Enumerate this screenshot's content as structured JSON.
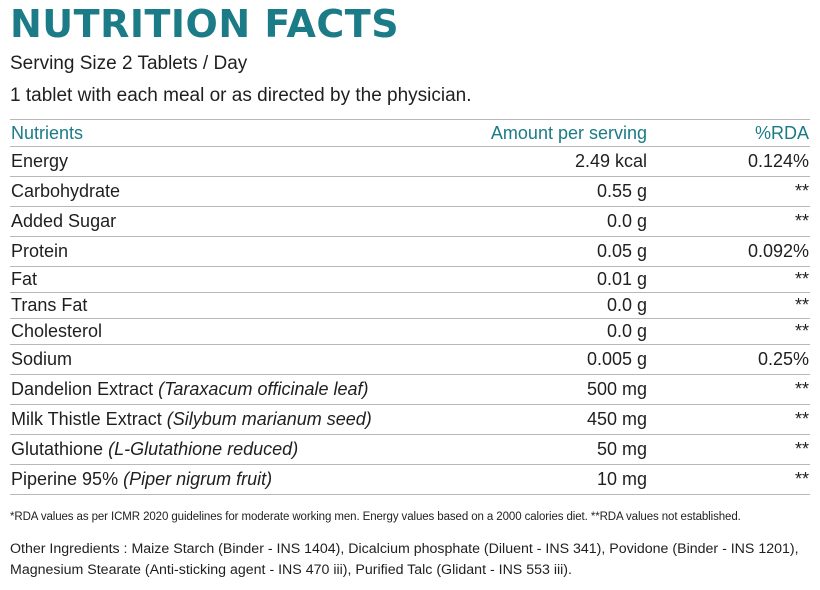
{
  "colors": {
    "accent": "#1b7b87",
    "text": "#1f1f1f",
    "rule": "#b8b8b8"
  },
  "title": "NUTRITION FACTS",
  "serving_size": "Serving Size 2 Tablets / Day",
  "directions": "1 tablet with each meal or as directed by the physician.",
  "table": {
    "headers": {
      "nutrient": "Nutrients",
      "amount": "Amount per serving",
      "rda": "%RDA"
    },
    "rows": [
      {
        "name": "Energy",
        "latin": "",
        "amount": "2.49 kcal",
        "rda": "0.124%"
      },
      {
        "name": "Carbohydrate",
        "latin": "",
        "amount": "0.55 g",
        "rda": "**"
      },
      {
        "name": "Added Sugar",
        "latin": "",
        "amount": "0.0 g",
        "rda": "**"
      },
      {
        "name": "Protein",
        "latin": "",
        "amount": "0.05 g",
        "rda": "0.092%"
      },
      {
        "name": "Fat",
        "latin": "",
        "amount": "0.01 g",
        "rda": "**"
      },
      {
        "name": "Trans Fat",
        "latin": "",
        "amount": "0.0 g",
        "rda": "**"
      },
      {
        "name": "Cholesterol",
        "latin": "",
        "amount": "0.0 g",
        "rda": "**"
      },
      {
        "name": "Sodium",
        "latin": "",
        "amount": "0.005 g",
        "rda": "0.25%"
      },
      {
        "name": "Dandelion Extract ",
        "latin": "(Taraxacum officinale leaf)",
        "amount": "500 mg",
        "rda": "**"
      },
      {
        "name": "Milk Thistle Extract ",
        "latin": "(Silybum marianum seed)",
        "amount": "450 mg",
        "rda": "**"
      },
      {
        "name": "Glutathione ",
        "latin": "(L-Glutathione reduced)",
        "amount": "50 mg",
        "rda": "**"
      },
      {
        "name": "Piperine 95% ",
        "latin": "(Piper nigrum fruit)",
        "amount": "10 mg",
        "rda": "**"
      }
    ]
  },
  "footnote": "*RDA values as per ICMR 2020 guidelines for moderate working men. Energy values based on a 2000 calories diet. **RDA values not established.",
  "other_ingredients": "Other Ingredients : Maize Starch (Binder - INS 1404), Dicalcium phosphate (Diluent - INS 341), Povidone (Binder - INS 1201), Magnesium Stearate (Anti-sticking agent - INS 470 iii), Purified Talc (Glidant - INS 553 iii)."
}
